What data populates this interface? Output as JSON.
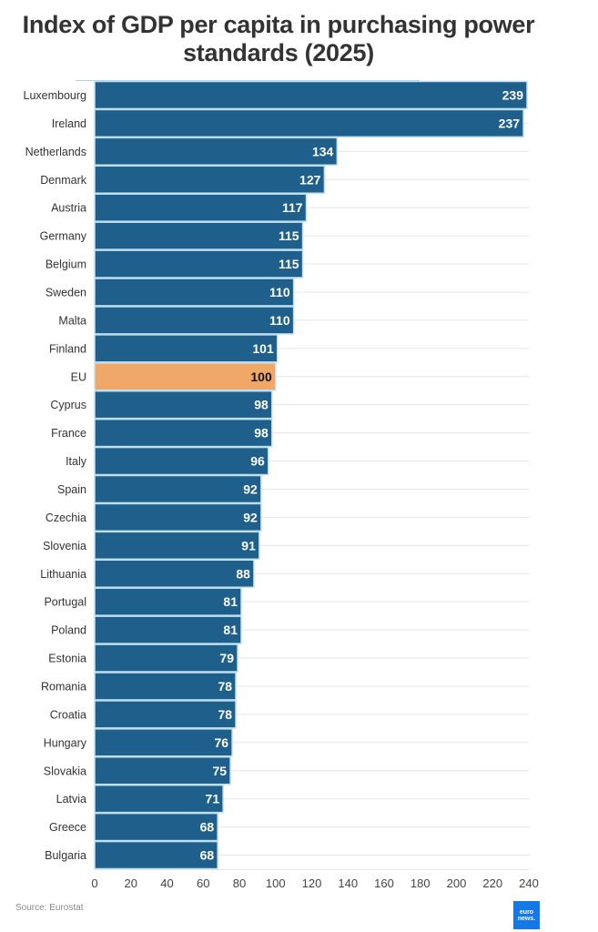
{
  "header": {
    "title_line1": "Index of GDP per capita in purchasing power",
    "title_line2": "standards (2025)"
  },
  "footer": {
    "source": "Source: Eurostat",
    "logo_text_line1": "euro",
    "logo_text_line2": "news."
  },
  "colors": {
    "bar": "#1f5f8b",
    "highlight_bar": "#f0a868",
    "separator": "#bfe0f2",
    "grid": "#e6e6e6",
    "value_label_on_bar": "#ffffff",
    "value_label_on_highlight": "#111111"
  },
  "chart_data": {
    "type": "bar",
    "orientation": "horizontal",
    "title": "Index of GDP per capita in purchasing power standards (2025)",
    "xlabel": "",
    "ylabel": "",
    "xlim": [
      0,
      240
    ],
    "x_ticks": [
      0,
      20,
      40,
      60,
      80,
      100,
      120,
      140,
      160,
      180,
      200,
      220,
      240
    ],
    "grid": "horizontal row lines",
    "highlight": "EU",
    "categories": [
      "Luxembourg",
      "Ireland",
      "Netherlands",
      "Denmark",
      "Austria",
      "Germany",
      "Belgium",
      "Sweden",
      "Malta",
      "Finland",
      "EU",
      "Cyprus",
      "France",
      "Italy",
      "Spain",
      "Czechia",
      "Slovenia",
      "Lithuania",
      "Portugal",
      "Poland",
      "Estonia",
      "Romania",
      "Croatia",
      "Hungary",
      "Slovakia",
      "Latvia",
      "Greece",
      "Bulgaria"
    ],
    "values": [
      239,
      237,
      134,
      127,
      117,
      115,
      115,
      110,
      110,
      101,
      100,
      98,
      98,
      96,
      92,
      92,
      91,
      88,
      81,
      81,
      79,
      78,
      78,
      76,
      75,
      71,
      68,
      68
    ],
    "source": "Eurostat"
  }
}
